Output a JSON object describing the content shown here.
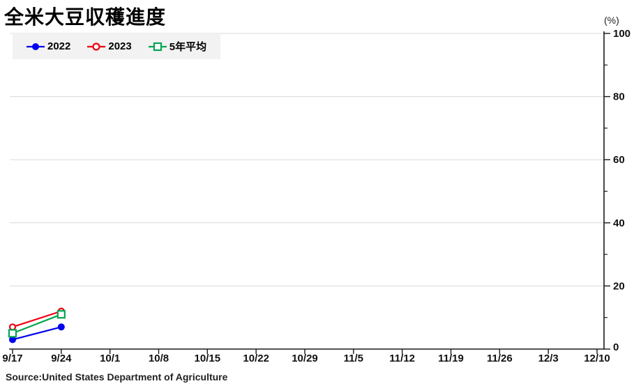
{
  "title": "全米大豆収穫進度",
  "unit_label": "(%)",
  "source": "Source:United States Department of Agriculture",
  "chart_data": {
    "type": "line",
    "title": "全米大豆収穫進度",
    "ylabel": "(%)",
    "x_labels": [
      "9/17",
      "9/24",
      "10/1",
      "10/8",
      "10/15",
      "10/22",
      "10/29",
      "11/5",
      "11/12",
      "11/19",
      "11/26",
      "12/3",
      "12/10"
    ],
    "series": [
      {
        "name": "2022",
        "color": "#0000ee",
        "marker": "filled-circle",
        "values": [
          3,
          7,
          null,
          null,
          null,
          null,
          null,
          null,
          null,
          null,
          null,
          null,
          null
        ]
      },
      {
        "name": "2023",
        "color": "#ee0011",
        "marker": "open-circle",
        "values": [
          7,
          12,
          null,
          null,
          null,
          null,
          null,
          null,
          null,
          null,
          null,
          null,
          null
        ]
      },
      {
        "name": "5年平均",
        "color": "#00a650",
        "marker": "open-square",
        "values": [
          5,
          11,
          null,
          null,
          null,
          null,
          null,
          null,
          null,
          null,
          null,
          null,
          null
        ]
      }
    ],
    "ylim": [
      0,
      100
    ],
    "y_ticks": [
      0,
      20,
      40,
      60,
      80,
      100
    ],
    "y_minor_step": 10,
    "grid": "horizontal",
    "grid_color": "#d9d9d9",
    "axis_color": "#1a1a1a",
    "legend_position": "top-left",
    "legend_background": "#f2f2f2",
    "source": "Source:United States Department of Agriculture"
  }
}
